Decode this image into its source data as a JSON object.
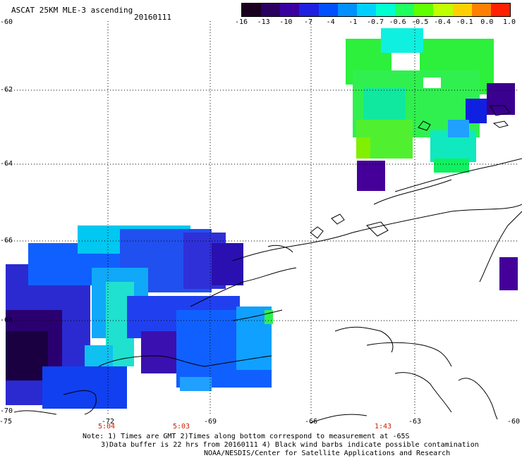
{
  "header": {
    "title": "ASCAT 25KM MLE-3 ascending",
    "date": "20160111"
  },
  "colorbar": {
    "labels": [
      "-16",
      "-13",
      "-10",
      "-7",
      "-4",
      "-1",
      "-0.7",
      "-0.6",
      "-0.5",
      "-0.4",
      "-0.1",
      "0.0",
      "1.0"
    ],
    "colors": [
      "#1a0020",
      "#2a0060",
      "#3a00a0",
      "#2020e0",
      "#0050ff",
      "#0090ff",
      "#00d0ff",
      "#00ffd0",
      "#20ff60",
      "#60ff00",
      "#c0ff00",
      "#ffd000",
      "#ff8000",
      "#ff2000"
    ]
  },
  "axes": {
    "lat_labels": [
      "-60",
      "-62",
      "-64",
      "-66",
      "-68",
      "-70"
    ],
    "lon_labels": [
      "-75",
      "-72",
      "-69",
      "-66",
      "-63",
      "-60"
    ],
    "time_labels": [
      "5:04",
      "5:03",
      "1:43"
    ]
  },
  "notes": {
    "line1": "Note: 1) Times are GMT 2)Times along bottom correspond to measurement at -65S",
    "line2": "3)Data buffer is 22 hrs from 20160111 4) Black wind barbs indicate possible contamination",
    "line3": "NOAA/NESDIS/Center for Satellite Applications and Research"
  },
  "style_colors": {
    "time_label": "#cc2200",
    "grid": "#000000"
  }
}
